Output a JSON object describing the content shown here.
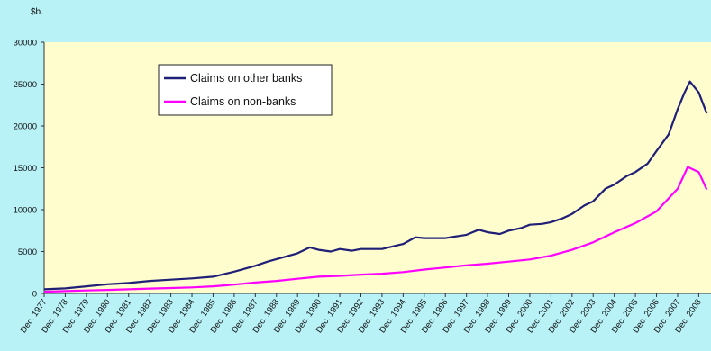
{
  "chart_data": {
    "type": "line",
    "y_unit": "$b.",
    "ylim": [
      0,
      30000
    ],
    "y_ticks": [
      "0",
      "5000",
      "10000",
      "15000",
      "20000",
      "25000",
      "30000"
    ],
    "x_ticks": [
      "Dec. 1977",
      "Dec. 1978",
      "Dec. 1979",
      "Dec. 1980",
      "Dec. 1981",
      "Dec. 1982",
      "Dec. 1983",
      "Dec. 1984",
      "Dec. 1985",
      "Dec. 1986",
      "Dec. 1987",
      "Dec. 1988",
      "Dec. 1989",
      "Dec. 1990",
      "Dec. 1991",
      "Dec. 1992",
      "Dec. 1993",
      "Dec. 1994",
      "Dec. 1995",
      "Dec. 1996",
      "Dec. 1997",
      "Dec. 1998",
      "Dec. 1999",
      "Dec. 2000",
      "Dec. 2001",
      "Dec. 2002",
      "Dec. 2003",
      "Dec. 2004",
      "Dec. 2005",
      "Dec. 2006",
      "Dec. 2007",
      "Dec. 2008"
    ],
    "x_range": [
      1977.92,
      2009.5
    ],
    "grid": false,
    "legend_position": "top-left",
    "series": [
      {
        "name": "Claims on other banks",
        "color": "#1f1f78",
        "x": [
          1977.92,
          1978.92,
          1979.92,
          1980.92,
          1981.92,
          1982.92,
          1983.92,
          1984.92,
          1985.92,
          1986.92,
          1987.92,
          1988.5,
          1988.92,
          1989.92,
          1990.5,
          1990.92,
          1991.5,
          1991.92,
          1992.5,
          1992.92,
          1993.92,
          1994.92,
          1995.5,
          1995.92,
          1996.92,
          1997.92,
          1998.5,
          1998.92,
          1999.5,
          1999.92,
          2000.5,
          2000.92,
          2001.5,
          2001.92,
          2002.5,
          2002.92,
          2003.5,
          2003.92,
          2004.5,
          2004.92,
          2005.5,
          2005.92,
          2006.5,
          2006.92,
          2007.5,
          2007.92,
          2008.25,
          2008.5,
          2008.92,
          2009.3
        ],
        "y": [
          500,
          600,
          850,
          1100,
          1250,
          1500,
          1650,
          1800,
          2000,
          2600,
          3300,
          3800,
          4100,
          4800,
          5500,
          5200,
          5000,
          5300,
          5100,
          5300,
          5300,
          5900,
          6700,
          6600,
          6600,
          7000,
          7600,
          7300,
          7100,
          7500,
          7800,
          8200,
          8300,
          8500,
          9000,
          9500,
          10500,
          11000,
          12500,
          13000,
          14000,
          14500,
          15500,
          17000,
          19000,
          22000,
          24000,
          25300,
          24000,
          21500
        ]
      },
      {
        "name": "Claims on non-banks",
        "color": "#ff00ff",
        "x": [
          1977.92,
          1978.92,
          1979.92,
          1980.92,
          1981.92,
          1982.92,
          1983.92,
          1984.92,
          1985.92,
          1986.92,
          1987.92,
          1988.92,
          1989.92,
          1990.92,
          1991.92,
          1992.92,
          1993.92,
          1994.92,
          1995.92,
          1996.92,
          1997.92,
          1998.92,
          1999.92,
          2000.92,
          2001.92,
          2002.92,
          2003.92,
          2004.92,
          2005.92,
          2006.92,
          2007.92,
          2008.4,
          2008.92,
          2009.3
        ],
        "y": [
          200,
          280,
          350,
          420,
          500,
          580,
          650,
          720,
          850,
          1050,
          1300,
          1500,
          1750,
          2000,
          2100,
          2250,
          2350,
          2550,
          2850,
          3100,
          3350,
          3550,
          3800,
          4050,
          4500,
          5200,
          6100,
          7300,
          8400,
          9800,
          12500,
          15100,
          14500,
          12400
        ]
      }
    ]
  }
}
